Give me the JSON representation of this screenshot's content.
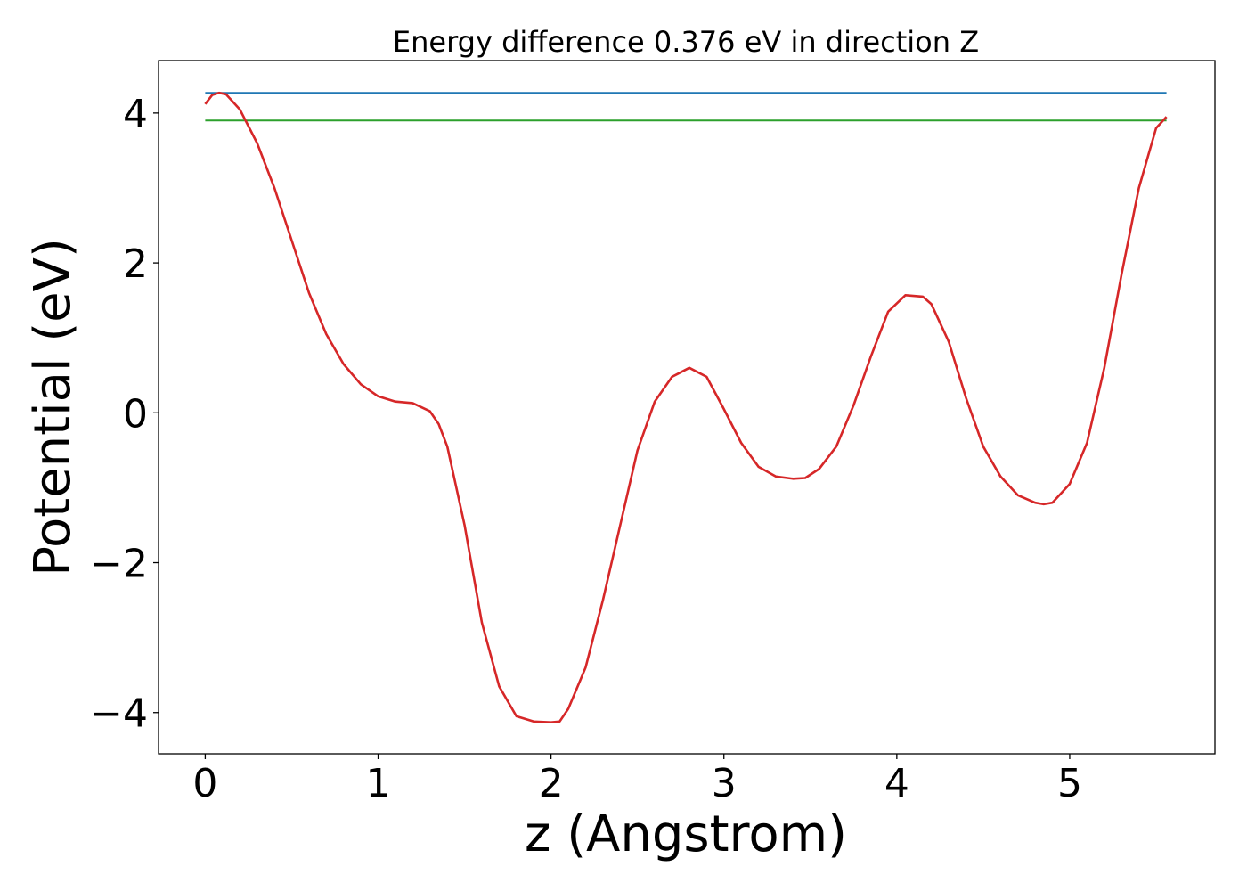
{
  "chart_data": {
    "type": "line",
    "title": "Energy difference 0.376 eV in direction Z",
    "xlabel": "z (Angstrom)",
    "ylabel": "Potential (eV)",
    "xlim": [
      -0.27,
      5.84
    ],
    "ylim": [
      -4.55,
      4.7
    ],
    "xticks": [
      0,
      1,
      2,
      3,
      4,
      5
    ],
    "yticks": [
      -4,
      -2,
      0,
      2,
      4
    ],
    "xtick_labels": [
      "0",
      "1",
      "2",
      "3",
      "4",
      "5"
    ],
    "ytick_labels": [
      "−4",
      "−2",
      "0",
      "2",
      "4"
    ],
    "grid": false,
    "series": [
      {
        "color": "#1f77b4",
        "x": [
          0,
          5.56
        ],
        "y": [
          4.27,
          4.27
        ]
      },
      {
        "color": "#2ca02c",
        "x": [
          0,
          5.56
        ],
        "y": [
          3.9,
          3.9
        ]
      },
      {
        "color": "#d62728",
        "x": [
          0.0,
          0.04,
          0.08,
          0.12,
          0.2,
          0.3,
          0.4,
          0.5,
          0.6,
          0.7,
          0.8,
          0.9,
          1.0,
          1.1,
          1.2,
          1.3,
          1.35,
          1.4,
          1.5,
          1.6,
          1.7,
          1.8,
          1.9,
          2.0,
          2.05,
          2.1,
          2.2,
          2.3,
          2.4,
          2.5,
          2.6,
          2.7,
          2.8,
          2.9,
          3.0,
          3.1,
          3.2,
          3.3,
          3.4,
          3.47,
          3.55,
          3.65,
          3.75,
          3.85,
          3.95,
          4.05,
          4.15,
          4.2,
          4.3,
          4.4,
          4.5,
          4.6,
          4.7,
          4.8,
          4.85,
          4.9,
          5.0,
          5.1,
          5.2,
          5.3,
          5.4,
          5.5,
          5.56
        ],
        "y": [
          4.12,
          4.24,
          4.27,
          4.25,
          4.05,
          3.6,
          3.0,
          2.3,
          1.6,
          1.05,
          0.65,
          0.38,
          0.22,
          0.15,
          0.13,
          0.02,
          -0.15,
          -0.45,
          -1.5,
          -2.8,
          -3.65,
          -4.05,
          -4.12,
          -4.13,
          -4.12,
          -3.95,
          -3.4,
          -2.5,
          -1.5,
          -0.5,
          0.15,
          0.48,
          0.6,
          0.48,
          0.05,
          -0.4,
          -0.72,
          -0.85,
          -0.88,
          -0.87,
          -0.75,
          -0.45,
          0.1,
          0.75,
          1.35,
          1.57,
          1.55,
          1.45,
          0.95,
          0.2,
          -0.45,
          -0.85,
          -1.1,
          -1.2,
          -1.22,
          -1.2,
          -0.95,
          -0.4,
          0.6,
          1.85,
          3.0,
          3.8,
          3.95
        ]
      }
    ]
  }
}
